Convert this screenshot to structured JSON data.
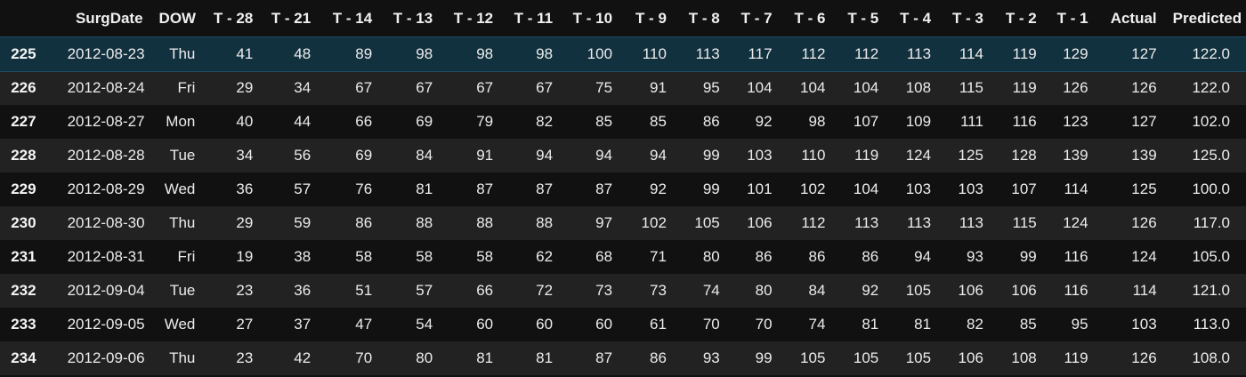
{
  "table": {
    "index_header": "",
    "columns": [
      "SurgDate",
      "DOW",
      "T - 28",
      "T - 21",
      "T - 14",
      "T - 13",
      "T - 12",
      "T - 11",
      "T - 10",
      "T - 9",
      "T - 8",
      "T - 7",
      "T - 6",
      "T - 5",
      "T - 4",
      "T - 3",
      "T - 2",
      "T - 1",
      "Actual",
      "Predicted"
    ],
    "highlighted_row_index": "225",
    "rows": [
      {
        "index": "225",
        "cells": [
          "2012-08-23",
          "Thu",
          "41",
          "48",
          "89",
          "98",
          "98",
          "98",
          "100",
          "110",
          "113",
          "117",
          "112",
          "112",
          "113",
          "114",
          "119",
          "129",
          "127",
          "122.0"
        ]
      },
      {
        "index": "226",
        "cells": [
          "2012-08-24",
          "Fri",
          "29",
          "34",
          "67",
          "67",
          "67",
          "67",
          "75",
          "91",
          "95",
          "104",
          "104",
          "104",
          "108",
          "115",
          "119",
          "126",
          "126",
          "122.0"
        ]
      },
      {
        "index": "227",
        "cells": [
          "2012-08-27",
          "Mon",
          "40",
          "44",
          "66",
          "69",
          "79",
          "82",
          "85",
          "85",
          "86",
          "92",
          "98",
          "107",
          "109",
          "111",
          "116",
          "123",
          "127",
          "102.0"
        ]
      },
      {
        "index": "228",
        "cells": [
          "2012-08-28",
          "Tue",
          "34",
          "56",
          "69",
          "84",
          "91",
          "94",
          "94",
          "94",
          "99",
          "103",
          "110",
          "119",
          "124",
          "125",
          "128",
          "139",
          "139",
          "125.0"
        ]
      },
      {
        "index": "229",
        "cells": [
          "2012-08-29",
          "Wed",
          "36",
          "57",
          "76",
          "81",
          "87",
          "87",
          "87",
          "92",
          "99",
          "101",
          "102",
          "104",
          "103",
          "103",
          "107",
          "114",
          "125",
          "100.0"
        ]
      },
      {
        "index": "230",
        "cells": [
          "2012-08-30",
          "Thu",
          "29",
          "59",
          "86",
          "88",
          "88",
          "88",
          "97",
          "102",
          "105",
          "106",
          "112",
          "113",
          "113",
          "113",
          "115",
          "124",
          "126",
          "117.0"
        ]
      },
      {
        "index": "231",
        "cells": [
          "2012-08-31",
          "Fri",
          "19",
          "38",
          "58",
          "58",
          "58",
          "62",
          "68",
          "71",
          "80",
          "86",
          "86",
          "86",
          "94",
          "93",
          "99",
          "116",
          "124",
          "105.0"
        ]
      },
      {
        "index": "232",
        "cells": [
          "2012-09-04",
          "Tue",
          "23",
          "36",
          "51",
          "57",
          "66",
          "72",
          "73",
          "73",
          "74",
          "80",
          "84",
          "92",
          "105",
          "106",
          "106",
          "116",
          "114",
          "121.0"
        ]
      },
      {
        "index": "233",
        "cells": [
          "2012-09-05",
          "Wed",
          "27",
          "37",
          "47",
          "54",
          "60",
          "60",
          "60",
          "61",
          "70",
          "70",
          "74",
          "81",
          "81",
          "82",
          "85",
          "95",
          "103",
          "113.0"
        ]
      },
      {
        "index": "234",
        "cells": [
          "2012-09-06",
          "Thu",
          "23",
          "42",
          "70",
          "80",
          "81",
          "81",
          "87",
          "86",
          "93",
          "99",
          "105",
          "105",
          "105",
          "106",
          "108",
          "119",
          "126",
          "108.0"
        ]
      }
    ]
  }
}
